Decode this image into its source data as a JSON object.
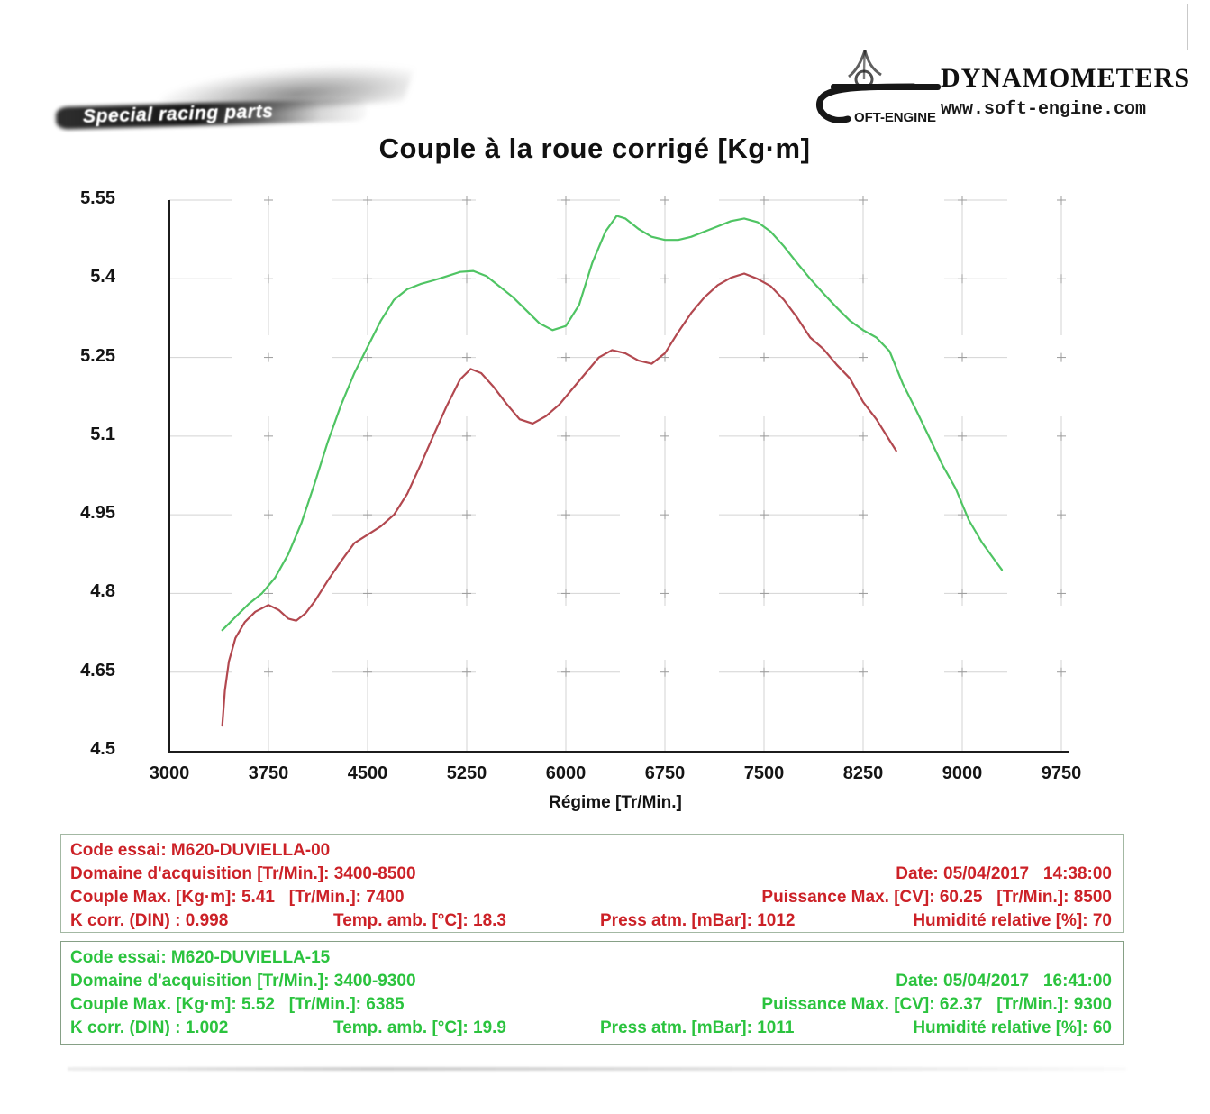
{
  "header": {
    "left_logo_text": "Special racing parts",
    "brand_small": "OFT-ENGINE",
    "brand_title": "DYNAMOMETERS",
    "brand_url": "www.soft-engine.com"
  },
  "chart_data": {
    "type": "line",
    "title": "Couple à la roue corrigé [Kg·m]",
    "xlabel": "Régime [Tr/Min.]",
    "ylabel": "",
    "xlim": [
      3000,
      9750
    ],
    "ylim": [
      4.5,
      5.55
    ],
    "x_ticks": [
      3000,
      3750,
      4500,
      5250,
      6000,
      6750,
      7500,
      8250,
      9000,
      9750
    ],
    "y_tick_labels": [
      "5.55",
      "5.4",
      "5.25",
      "5.1",
      "4.95",
      "4.8",
      "4.65",
      "4.5"
    ],
    "grid": true,
    "legend_position": "none",
    "series": [
      {
        "name": "M620-DUVIELLA-15",
        "color": "#4fc463",
        "points": [
          [
            3400,
            4.73
          ],
          [
            3500,
            4.755
          ],
          [
            3600,
            4.78
          ],
          [
            3700,
            4.8
          ],
          [
            3800,
            4.83
          ],
          [
            3900,
            4.875
          ],
          [
            4000,
            4.935
          ],
          [
            4100,
            5.01
          ],
          [
            4200,
            5.09
          ],
          [
            4300,
            5.16
          ],
          [
            4400,
            5.22
          ],
          [
            4500,
            5.27
          ],
          [
            4600,
            5.32
          ],
          [
            4700,
            5.36
          ],
          [
            4800,
            5.38
          ],
          [
            4900,
            5.39
          ],
          [
            5000,
            5.397
          ],
          [
            5100,
            5.405
          ],
          [
            5200,
            5.413
          ],
          [
            5300,
            5.415
          ],
          [
            5400,
            5.405
          ],
          [
            5500,
            5.385
          ],
          [
            5600,
            5.365
          ],
          [
            5700,
            5.34
          ],
          [
            5800,
            5.315
          ],
          [
            5900,
            5.302
          ],
          [
            6000,
            5.31
          ],
          [
            6100,
            5.35
          ],
          [
            6200,
            5.43
          ],
          [
            6300,
            5.49
          ],
          [
            6385,
            5.52
          ],
          [
            6450,
            5.515
          ],
          [
            6550,
            5.495
          ],
          [
            6650,
            5.48
          ],
          [
            6750,
            5.474
          ],
          [
            6850,
            5.474
          ],
          [
            6950,
            5.48
          ],
          [
            7050,
            5.49
          ],
          [
            7150,
            5.5
          ],
          [
            7250,
            5.51
          ],
          [
            7350,
            5.515
          ],
          [
            7450,
            5.508
          ],
          [
            7550,
            5.49
          ],
          [
            7650,
            5.462
          ],
          [
            7750,
            5.43
          ],
          [
            7850,
            5.4
          ],
          [
            7950,
            5.372
          ],
          [
            8050,
            5.345
          ],
          [
            8150,
            5.32
          ],
          [
            8250,
            5.302
          ],
          [
            8350,
            5.288
          ],
          [
            8450,
            5.262
          ],
          [
            8550,
            5.2
          ],
          [
            8650,
            5.15
          ],
          [
            8750,
            5.098
          ],
          [
            8850,
            5.045
          ],
          [
            8950,
            5.0
          ],
          [
            9050,
            4.94
          ],
          [
            9150,
            4.897
          ],
          [
            9250,
            4.862
          ],
          [
            9300,
            4.845
          ]
        ]
      },
      {
        "name": "M620-DUVIELLA-00",
        "color": "#b2484f",
        "points": [
          [
            3400,
            4.548
          ],
          [
            3420,
            4.615
          ],
          [
            3450,
            4.67
          ],
          [
            3500,
            4.715
          ],
          [
            3570,
            4.745
          ],
          [
            3650,
            4.765
          ],
          [
            3750,
            4.778
          ],
          [
            3830,
            4.768
          ],
          [
            3900,
            4.752
          ],
          [
            3960,
            4.748
          ],
          [
            4030,
            4.762
          ],
          [
            4100,
            4.785
          ],
          [
            4200,
            4.825
          ],
          [
            4300,
            4.862
          ],
          [
            4400,
            4.896
          ],
          [
            4500,
            4.912
          ],
          [
            4600,
            4.928
          ],
          [
            4700,
            4.95
          ],
          [
            4800,
            4.99
          ],
          [
            4900,
            5.045
          ],
          [
            5000,
            5.102
          ],
          [
            5100,
            5.158
          ],
          [
            5200,
            5.208
          ],
          [
            5280,
            5.228
          ],
          [
            5360,
            5.22
          ],
          [
            5450,
            5.195
          ],
          [
            5550,
            5.162
          ],
          [
            5650,
            5.132
          ],
          [
            5750,
            5.124
          ],
          [
            5850,
            5.138
          ],
          [
            5950,
            5.16
          ],
          [
            6050,
            5.19
          ],
          [
            6150,
            5.22
          ],
          [
            6250,
            5.25
          ],
          [
            6350,
            5.264
          ],
          [
            6450,
            5.258
          ],
          [
            6550,
            5.244
          ],
          [
            6650,
            5.238
          ],
          [
            6750,
            5.258
          ],
          [
            6850,
            5.298
          ],
          [
            6950,
            5.335
          ],
          [
            7050,
            5.365
          ],
          [
            7150,
            5.388
          ],
          [
            7250,
            5.402
          ],
          [
            7350,
            5.41
          ],
          [
            7450,
            5.4
          ],
          [
            7550,
            5.386
          ],
          [
            7650,
            5.36
          ],
          [
            7750,
            5.326
          ],
          [
            7850,
            5.288
          ],
          [
            7950,
            5.266
          ],
          [
            8050,
            5.236
          ],
          [
            8150,
            5.21
          ],
          [
            8250,
            5.165
          ],
          [
            8350,
            5.132
          ],
          [
            8450,
            5.092
          ],
          [
            8500,
            5.072
          ]
        ]
      }
    ]
  },
  "info_boxes": [
    {
      "code": "Code essai: M620-DUVIELLA-00",
      "domaine": "Domaine d'acquisition [Tr/Min.]: 3400-8500",
      "date": "Date: 05/04/2017   14:38:00",
      "couple": "Couple Max. [Kg·m]: 5.41   [Tr/Min.]: 7400",
      "puissance": "Puissance Max. [CV]: 60.25   [Tr/Min.]: 8500",
      "kcorr": "K corr. (DIN) : 0.998",
      "temp": "Temp. amb. [°C]: 18.3",
      "press": "Press atm. [mBar]: 1012",
      "humidite": "Humidité relative [%]: 70",
      "text_color": "#cc2127"
    },
    {
      "code": "Code essai: M620-DUVIELLA-15",
      "domaine": "Domaine d'acquisition [Tr/Min.]: 3400-9300",
      "date": "Date: 05/04/2017   16:41:00",
      "couple": "Couple Max. [Kg·m]: 5.52   [Tr/Min.]: 6385",
      "puissance": "Puissance Max. [CV]: 62.37   [Tr/Min.]: 9300",
      "kcorr": "K corr. (DIN) : 1.002",
      "temp": "Temp. amb. [°C]: 19.9",
      "press": "Press atm. [mBar]: 1011",
      "humidite": "Humidité relative [%]: 60",
      "text_color": "#2bc33e"
    }
  ]
}
